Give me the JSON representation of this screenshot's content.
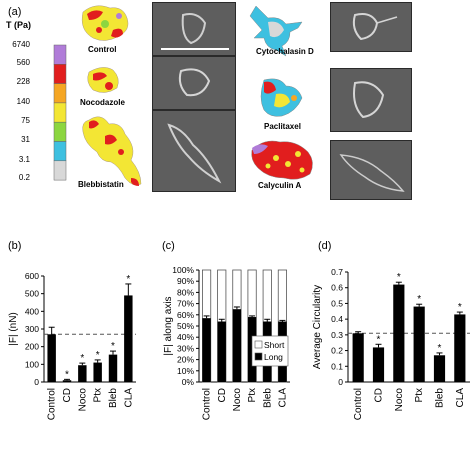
{
  "panels": {
    "a": "(a)",
    "b": "(b)",
    "c": "(c)",
    "d": "(d)"
  },
  "colorbar": {
    "title": "T (Pa)",
    "ticks": [
      "6740",
      "560",
      "228",
      "140",
      "75",
      "31",
      "3.1",
      "0.2"
    ],
    "colors": [
      "#b07cd8",
      "#e11e1e",
      "#f5a623",
      "#f3e634",
      "#8cd640",
      "#3ec0e0",
      "#d8d8d8"
    ]
  },
  "cells": {
    "control": "Control",
    "nocodazole": "Nocodazole",
    "blebbistatin": "Blebbistatin",
    "cytochalasin": "Cytochalasin D",
    "paclitaxel": "Paclitaxel",
    "calyculin": "Calyculin A"
  },
  "chart_data": [
    {
      "type": "bar",
      "panel": "(b)",
      "categories": [
        "Control",
        "CD",
        "Noco",
        "Ptx",
        "Bleb",
        "CLA"
      ],
      "values": [
        270,
        10,
        95,
        110,
        155,
        490
      ],
      "errors": [
        40,
        5,
        12,
        15,
        20,
        65
      ],
      "significant": [
        "",
        "*",
        "*",
        "*",
        "*",
        "*"
      ],
      "ylabel": "|F| (nN)",
      "yticks": [
        "0",
        "100",
        "200",
        "300",
        "400",
        "500",
        "600"
      ],
      "ylim": [
        0,
        600
      ],
      "reference_line": 270
    },
    {
      "type": "bar",
      "panel": "(c)",
      "stacked": true,
      "categories": [
        "Control",
        "CD",
        "Noco",
        "Ptx",
        "Bleb",
        "CLA"
      ],
      "series": [
        {
          "name": "Long",
          "values": [
            0.57,
            0.54,
            0.65,
            0.58,
            0.54,
            0.54
          ]
        },
        {
          "name": "Short",
          "values": [
            0.43,
            0.46,
            0.35,
            0.42,
            0.46,
            0.46
          ]
        }
      ],
      "errors": [
        0.02,
        0.02,
        0.02,
        0.01,
        0.02,
        0.01
      ],
      "ylabel": "|F| along axis",
      "yticks": [
        "0%",
        "10%",
        "20%",
        "30%",
        "40%",
        "50%",
        "60%",
        "70%",
        "80%",
        "90%",
        "100%"
      ],
      "ylim": [
        0,
        1
      ],
      "legend": [
        "Short",
        "Long"
      ]
    },
    {
      "type": "bar",
      "panel": "(d)",
      "categories": [
        "Control",
        "CD",
        "Noco",
        "Ptx",
        "Bleb",
        "CLA"
      ],
      "values": [
        0.31,
        0.22,
        0.62,
        0.48,
        0.17,
        0.43
      ],
      "errors": [
        0.01,
        0.02,
        0.015,
        0.015,
        0.015,
        0.015
      ],
      "significant": [
        "",
        "*",
        "*",
        "*",
        "*",
        "*"
      ],
      "ylabel": "Average Circularity",
      "yticks": [
        "0",
        "0.1",
        "0.2",
        "0.3",
        "0.4",
        "0.5",
        "0.6",
        "0.7"
      ],
      "ylim": [
        0,
        0.7
      ],
      "reference_line": 0.31
    }
  ]
}
